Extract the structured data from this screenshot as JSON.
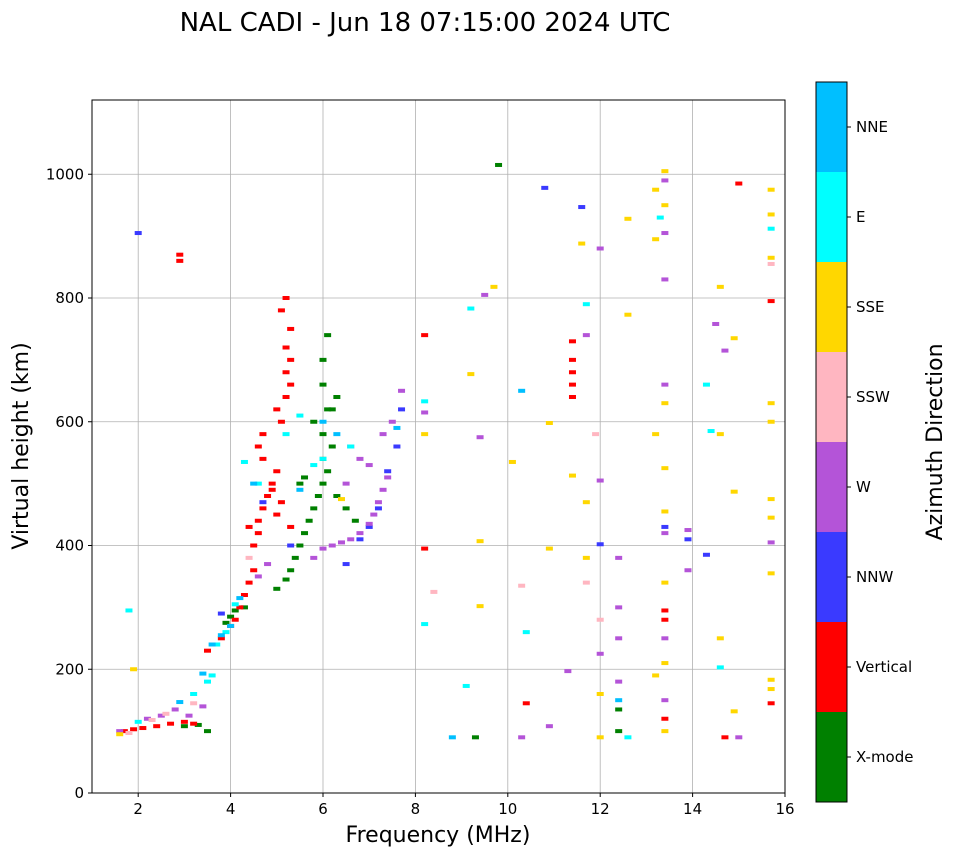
{
  "chart_data": {
    "type": "scatter",
    "title": "NAL CADI - Jun 18 07:15:00 2024 UTC",
    "xlabel": "Frequency (MHz)",
    "ylabel": "Virtual height (km)",
    "xlim": [
      1,
      16
    ],
    "ylim": [
      0,
      1120
    ],
    "xticks": [
      2,
      4,
      6,
      8,
      10,
      12,
      14,
      16
    ],
    "yticks": [
      0,
      200,
      400,
      600,
      800,
      1000
    ],
    "grid": true,
    "colorbar": {
      "label": "Azimuth Direction",
      "categories": [
        "X-mode",
        "Vertical",
        "NNW",
        "W",
        "SSW",
        "SSE",
        "E",
        "NNE"
      ],
      "colors": [
        "#008000",
        "#ff0000",
        "#3a3aff",
        "#b454d8",
        "#ffb6c1",
        "#ffd700",
        "#00ffff",
        "#00bfff"
      ]
    },
    "series": [
      {
        "name": "X-mode",
        "points": [
          [
            3.0,
            108
          ],
          [
            3.3,
            110
          ],
          [
            3.5,
            100
          ],
          [
            3.9,
            275
          ],
          [
            4.0,
            285
          ],
          [
            4.1,
            295
          ],
          [
            4.3,
            300
          ],
          [
            5.0,
            330
          ],
          [
            5.2,
            345
          ],
          [
            5.3,
            360
          ],
          [
            5.4,
            380
          ],
          [
            5.5,
            400
          ],
          [
            5.6,
            420
          ],
          [
            5.7,
            440
          ],
          [
            5.8,
            460
          ],
          [
            5.9,
            480
          ],
          [
            6.0,
            500
          ],
          [
            6.1,
            520
          ],
          [
            6.0,
            540
          ],
          [
            6.2,
            560
          ],
          [
            6.0,
            580
          ],
          [
            5.8,
            600
          ],
          [
            6.1,
            620
          ],
          [
            6.0,
            660
          ],
          [
            6.0,
            700
          ],
          [
            6.1,
            740
          ],
          [
            6.3,
            640
          ],
          [
            6.2,
            620
          ],
          [
            5.6,
            510
          ],
          [
            5.5,
            500
          ],
          [
            6.3,
            480
          ],
          [
            6.5,
            460
          ],
          [
            6.7,
            440
          ],
          [
            9.8,
            1015
          ],
          [
            9.3,
            90
          ],
          [
            12.4,
            100
          ],
          [
            12.4,
            135
          ]
        ]
      },
      {
        "name": "Vertical",
        "points": [
          [
            1.7,
            100
          ],
          [
            1.9,
            103
          ],
          [
            2.1,
            105
          ],
          [
            2.4,
            108
          ],
          [
            2.7,
            112
          ],
          [
            3.0,
            115
          ],
          [
            3.2,
            112
          ],
          [
            3.5,
            230
          ],
          [
            3.8,
            250
          ],
          [
            4.0,
            270
          ],
          [
            4.1,
            280
          ],
          [
            4.2,
            300
          ],
          [
            4.3,
            320
          ],
          [
            4.4,
            340
          ],
          [
            4.5,
            360
          ],
          [
            4.5,
            400
          ],
          [
            4.6,
            420
          ],
          [
            4.6,
            440
          ],
          [
            4.7,
            460
          ],
          [
            4.8,
            480
          ],
          [
            4.9,
            500
          ],
          [
            5.0,
            520
          ],
          [
            4.7,
            540
          ],
          [
            4.6,
            560
          ],
          [
            4.7,
            580
          ],
          [
            5.1,
            600
          ],
          [
            5.0,
            620
          ],
          [
            5.2,
            640
          ],
          [
            5.3,
            660
          ],
          [
            5.2,
            680
          ],
          [
            5.3,
            700
          ],
          [
            5.2,
            720
          ],
          [
            5.3,
            750
          ],
          [
            5.1,
            780
          ],
          [
            5.2,
            800
          ],
          [
            5.0,
            450
          ],
          [
            5.1,
            470
          ],
          [
            4.9,
            490
          ],
          [
            4.4,
            430
          ],
          [
            5.3,
            430
          ],
          [
            2.9,
            870
          ],
          [
            2.9,
            860
          ],
          [
            8.2,
            740
          ],
          [
            8.2,
            395
          ],
          [
            10.4,
            145
          ],
          [
            11.4,
            730
          ],
          [
            11.4,
            700
          ],
          [
            11.4,
            680
          ],
          [
            11.4,
            660
          ],
          [
            11.4,
            640
          ],
          [
            13.4,
            295
          ],
          [
            13.4,
            280
          ],
          [
            13.4,
            120
          ],
          [
            15.0,
            985
          ],
          [
            15.7,
            795
          ],
          [
            15.7,
            145
          ],
          [
            14.7,
            90
          ]
        ]
      },
      {
        "name": "NNW",
        "points": [
          [
            2.0,
            905
          ],
          [
            3.8,
            290
          ],
          [
            4.7,
            470
          ],
          [
            5.3,
            400
          ],
          [
            6.5,
            370
          ],
          [
            6.8,
            410
          ],
          [
            7.0,
            430
          ],
          [
            7.2,
            460
          ],
          [
            7.4,
            520
          ],
          [
            7.6,
            560
          ],
          [
            7.7,
            620
          ],
          [
            10.8,
            978
          ],
          [
            11.6,
            947
          ],
          [
            12.0,
            402
          ],
          [
            13.9,
            410
          ],
          [
            14.3,
            385
          ],
          [
            13.4,
            430
          ]
        ]
      },
      {
        "name": "W",
        "points": [
          [
            1.6,
            100
          ],
          [
            2.2,
            120
          ],
          [
            2.5,
            125
          ],
          [
            2.8,
            135
          ],
          [
            3.1,
            125
          ],
          [
            3.4,
            140
          ],
          [
            4.6,
            350
          ],
          [
            4.8,
            370
          ],
          [
            5.8,
            380
          ],
          [
            6.0,
            395
          ],
          [
            6.2,
            400
          ],
          [
            6.4,
            405
          ],
          [
            6.6,
            410
          ],
          [
            6.8,
            420
          ],
          [
            7.0,
            435
          ],
          [
            7.1,
            450
          ],
          [
            7.2,
            470
          ],
          [
            7.3,
            490
          ],
          [
            7.4,
            510
          ],
          [
            7.0,
            530
          ],
          [
            6.8,
            540
          ],
          [
            6.6,
            560
          ],
          [
            6.5,
            500
          ],
          [
            7.3,
            580
          ],
          [
            7.5,
            600
          ],
          [
            7.7,
            650
          ],
          [
            8.2,
            615
          ],
          [
            9.4,
            575
          ],
          [
            9.5,
            805
          ],
          [
            10.3,
            90
          ],
          [
            10.9,
            108
          ],
          [
            11.3,
            197
          ],
          [
            11.7,
            740
          ],
          [
            12.0,
            880
          ],
          [
            12.0,
            505
          ],
          [
            12.0,
            225
          ],
          [
            12.4,
            300
          ],
          [
            12.4,
            380
          ],
          [
            12.4,
            250
          ],
          [
            12.4,
            180
          ],
          [
            13.4,
            990
          ],
          [
            13.4,
            905
          ],
          [
            13.4,
            830
          ],
          [
            13.4,
            660
          ],
          [
            13.4,
            420
          ],
          [
            13.4,
            250
          ],
          [
            13.4,
            150
          ],
          [
            13.9,
            425
          ],
          [
            13.9,
            360
          ],
          [
            14.5,
            758
          ],
          [
            14.7,
            715
          ],
          [
            15.0,
            90
          ],
          [
            15.7,
            405
          ]
        ]
      },
      {
        "name": "SSW",
        "points": [
          [
            1.8,
            97
          ],
          [
            2.3,
            118
          ],
          [
            2.6,
            128
          ],
          [
            3.2,
            145
          ],
          [
            4.4,
            380
          ],
          [
            8.4,
            325
          ],
          [
            10.3,
            335
          ],
          [
            11.7,
            340
          ],
          [
            11.9,
            580
          ],
          [
            12.0,
            280
          ],
          [
            15.7,
            855
          ]
        ]
      },
      {
        "name": "SSE",
        "points": [
          [
            1.6,
            95
          ],
          [
            1.9,
            200
          ],
          [
            6.4,
            475
          ],
          [
            8.2,
            580
          ],
          [
            9.2,
            677
          ],
          [
            9.4,
            407
          ],
          [
            9.4,
            302
          ],
          [
            9.7,
            818
          ],
          [
            10.1,
            535
          ],
          [
            10.9,
            598
          ],
          [
            10.9,
            395
          ],
          [
            11.4,
            513
          ],
          [
            11.6,
            888
          ],
          [
            11.7,
            470
          ],
          [
            11.7,
            380
          ],
          [
            12.0,
            160
          ],
          [
            12.0,
            90
          ],
          [
            12.6,
            928
          ],
          [
            12.6,
            773
          ],
          [
            13.2,
            975
          ],
          [
            13.2,
            895
          ],
          [
            13.2,
            580
          ],
          [
            13.2,
            190
          ],
          [
            13.4,
            1005
          ],
          [
            13.4,
            950
          ],
          [
            13.4,
            630
          ],
          [
            13.4,
            525
          ],
          [
            13.4,
            455
          ],
          [
            13.4,
            340
          ],
          [
            13.4,
            210
          ],
          [
            13.4,
            100
          ],
          [
            14.6,
            818
          ],
          [
            14.6,
            580
          ],
          [
            14.6,
            250
          ],
          [
            14.9,
            735
          ],
          [
            14.9,
            487
          ],
          [
            14.9,
            132
          ],
          [
            15.7,
            975
          ],
          [
            15.7,
            935
          ],
          [
            15.7,
            865
          ],
          [
            15.7,
            630
          ],
          [
            15.7,
            600
          ],
          [
            15.7,
            475
          ],
          [
            15.7,
            445
          ],
          [
            15.7,
            355
          ],
          [
            15.7,
            183
          ],
          [
            15.7,
            168
          ]
        ]
      },
      {
        "name": "E",
        "points": [
          [
            1.8,
            295
          ],
          [
            2.0,
            115
          ],
          [
            3.2,
            160
          ],
          [
            3.5,
            180
          ],
          [
            3.6,
            190
          ],
          [
            3.7,
            240
          ],
          [
            3.9,
            260
          ],
          [
            4.1,
            305
          ],
          [
            4.3,
            535
          ],
          [
            4.6,
            500
          ],
          [
            5.2,
            580
          ],
          [
            5.5,
            610
          ],
          [
            5.8,
            530
          ],
          [
            6.0,
            540
          ],
          [
            6.6,
            560
          ],
          [
            8.2,
            633
          ],
          [
            8.2,
            273
          ],
          [
            9.2,
            783
          ],
          [
            9.1,
            173
          ],
          [
            10.4,
            260
          ],
          [
            11.7,
            790
          ],
          [
            12.6,
            90
          ],
          [
            13.3,
            930
          ],
          [
            14.3,
            660
          ],
          [
            14.4,
            585
          ],
          [
            14.6,
            203
          ],
          [
            15.7,
            912
          ]
        ]
      },
      {
        "name": "NNE",
        "points": [
          [
            2.9,
            147
          ],
          [
            3.4,
            193
          ],
          [
            3.6,
            240
          ],
          [
            3.8,
            255
          ],
          [
            4.0,
            270
          ],
          [
            4.2,
            315
          ],
          [
            4.5,
            500
          ],
          [
            5.5,
            490
          ],
          [
            6.0,
            600
          ],
          [
            6.3,
            580
          ],
          [
            7.6,
            590
          ],
          [
            8.8,
            90
          ],
          [
            10.3,
            650
          ],
          [
            12.4,
            150
          ]
        ]
      }
    ]
  }
}
